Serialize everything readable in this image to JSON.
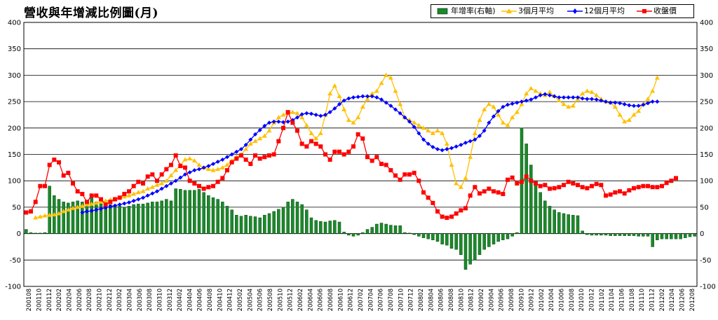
{
  "chart_data": {
    "type": "bar+line",
    "title": "營收與年增減比例圖(月)",
    "left_axis": {
      "min": -100,
      "max": 400,
      "ticks": [
        400,
        350,
        300,
        250,
        200,
        150,
        100,
        50,
        0,
        -50,
        -100
      ]
    },
    "right_axis": {
      "min": -100,
      "max": 400,
      "ticks": [
        400,
        350,
        300,
        250,
        200,
        150,
        100,
        50,
        0,
        -50,
        -100
      ]
    },
    "grid": true,
    "legend_position": "top-right",
    "x_tick_labels": [
      "200108",
      "200110",
      "200112",
      "200202",
      "200204",
      "200206",
      "200208",
      "200210",
      "200212",
      "200302",
      "200304",
      "200306",
      "200308",
      "200310",
      "200312",
      "200402",
      "200404",
      "200406",
      "200408",
      "200410",
      "200412",
      "200502",
      "200504",
      "200506",
      "200508",
      "200510",
      "200512",
      "200602",
      "200604",
      "200606",
      "200608",
      "200610",
      "200612",
      "200702",
      "200704",
      "200706",
      "200708",
      "200710",
      "200712",
      "200802",
      "200804",
      "200806",
      "200808",
      "200810",
      "200812",
      "200902",
      "200904",
      "200906",
      "200908",
      "200910",
      "200912",
      "201002",
      "201004",
      "201006",
      "201008",
      "201010",
      "201012",
      "201102",
      "201104",
      "201106",
      "201108",
      "201110",
      "201112",
      "201202",
      "201204",
      "201206",
      "201208"
    ],
    "series": [
      {
        "name": "年增率(右軸)",
        "kind": "bar",
        "axis": "right",
        "color": "#1a8a2a",
        "values": [
          8,
          2,
          1,
          1,
          2,
          90,
          72,
          65,
          60,
          58,
          60,
          62,
          60,
          62,
          70,
          60,
          58,
          58,
          55,
          52,
          52,
          50,
          52,
          55,
          56,
          56,
          58,
          60,
          60,
          62,
          65,
          62,
          85,
          84,
          82,
          82,
          82,
          84,
          78,
          72,
          68,
          65,
          60,
          52,
          45,
          35,
          33,
          35,
          33,
          32,
          30,
          35,
          38,
          42,
          46,
          50,
          60,
          65,
          60,
          55,
          45,
          30,
          25,
          23,
          22,
          24,
          25,
          22,
          3,
          -3,
          -5,
          -3,
          2,
          8,
          12,
          18,
          20,
          18,
          16,
          15,
          15,
          2,
          1,
          -2,
          -5,
          -8,
          -10,
          -12,
          -15,
          -20,
          -22,
          -28,
          -30,
          -40,
          -68,
          -58,
          -50,
          -40,
          -30,
          -25,
          -20,
          -15,
          -12,
          -10,
          -5,
          2,
          200,
          170,
          130,
          100,
          78,
          62,
          52,
          45,
          40,
          38,
          36,
          35,
          34,
          5,
          -2,
          -3,
          -3,
          -3,
          -3,
          -4,
          -4,
          -4,
          -4,
          -4,
          -4,
          -5,
          -5,
          -5,
          -25,
          -12,
          -10,
          -10,
          -10,
          -10,
          -10,
          -8,
          -6,
          -5
        ]
      },
      {
        "name": "3個月平均",
        "kind": "line",
        "axis": "left",
        "color": "#ffc000",
        "marker": "triangle",
        "values": [
          null,
          null,
          30,
          32,
          34,
          35,
          36,
          38,
          42,
          45,
          48,
          50,
          52,
          55,
          56,
          58,
          60,
          62,
          64,
          66,
          68,
          70,
          72,
          75,
          78,
          80,
          85,
          88,
          92,
          95,
          100,
          110,
          120,
          130,
          140,
          142,
          138,
          130,
          125,
          122,
          120,
          122,
          125,
          130,
          138,
          145,
          150,
          160,
          170,
          175,
          180,
          185,
          195,
          210,
          220,
          225,
          228,
          230,
          228,
          220,
          205,
          190,
          180,
          190,
          225,
          265,
          280,
          260,
          235,
          215,
          210,
          220,
          240,
          255,
          265,
          270,
          285,
          300,
          295,
          270,
          245,
          220,
          215,
          210,
          205,
          200,
          195,
          190,
          195,
          190,
          170,
          130,
          95,
          88,
          105,
          145,
          190,
          215,
          235,
          245,
          240,
          225,
          210,
          205,
          220,
          230,
          245,
          265,
          275,
          270,
          265,
          262,
          268,
          260,
          252,
          245,
          240,
          242,
          255,
          265,
          270,
          268,
          262,
          255,
          250,
          248,
          240,
          225,
          212,
          215,
          225,
          232,
          245,
          255,
          270,
          295
        ]
      },
      {
        "name": "12個月平均",
        "kind": "line",
        "axis": "left",
        "color": "#0000ff",
        "marker": "diamond",
        "values": [
          null,
          null,
          null,
          null,
          null,
          null,
          null,
          null,
          null,
          null,
          null,
          null,
          40,
          42,
          43,
          45,
          47,
          49,
          51,
          53,
          55,
          57,
          59,
          62,
          65,
          68,
          72,
          76,
          80,
          85,
          90,
          95,
          100,
          106,
          112,
          116,
          120,
          122,
          125,
          128,
          132,
          136,
          140,
          145,
          150,
          155,
          160,
          168,
          178,
          188,
          196,
          204,
          210,
          212,
          212,
          211,
          212,
          215,
          220,
          226,
          228,
          227,
          225,
          223,
          225,
          230,
          237,
          245,
          252,
          256,
          258,
          259,
          260,
          260,
          260,
          258,
          254,
          248,
          242,
          235,
          228,
          220,
          212,
          202,
          190,
          178,
          170,
          164,
          160,
          158,
          160,
          162,
          165,
          168,
          172,
          175,
          178,
          185,
          195,
          210,
          222,
          232,
          240,
          244,
          246,
          248,
          250,
          252,
          254,
          258,
          262,
          264,
          262,
          260,
          258,
          258,
          258,
          258,
          258,
          256,
          255,
          255,
          254,
          252,
          250,
          248,
          248,
          247,
          245,
          243,
          242,
          242,
          244,
          247,
          250,
          250
        ]
      },
      {
        "name": "收盤價",
        "kind": "line",
        "axis": "left",
        "color": "#ff0000",
        "marker": "square",
        "values": [
          40,
          42,
          60,
          90,
          90,
          130,
          140,
          135,
          110,
          115,
          95,
          80,
          75,
          60,
          72,
          72,
          65,
          55,
          60,
          65,
          68,
          75,
          80,
          90,
          98,
          95,
          108,
          112,
          100,
          112,
          122,
          130,
          148,
          128,
          125,
          100,
          95,
          90,
          85,
          88,
          90,
          98,
          105,
          120,
          135,
          142,
          148,
          140,
          132,
          148,
          142,
          145,
          148,
          150,
          175,
          200,
          230,
          210,
          195,
          170,
          165,
          175,
          170,
          165,
          150,
          140,
          155,
          155,
          150,
          155,
          165,
          188,
          180,
          145,
          138,
          145,
          132,
          130,
          120,
          110,
          102,
          112,
          112,
          115,
          100,
          78,
          68,
          58,
          42,
          32,
          30,
          32,
          38,
          44,
          48,
          72,
          88,
          76,
          80,
          85,
          80,
          78,
          75,
          102,
          106,
          95,
          98,
          108,
          100,
          95,
          90,
          92,
          85,
          86,
          88,
          92,
          98,
          95,
          92,
          88,
          86,
          90,
          94,
          92,
          72,
          74,
          78,
          80,
          76,
          82,
          86,
          88,
          90,
          90,
          88,
          88,
          90,
          96,
          100,
          105
        ]
      }
    ]
  }
}
